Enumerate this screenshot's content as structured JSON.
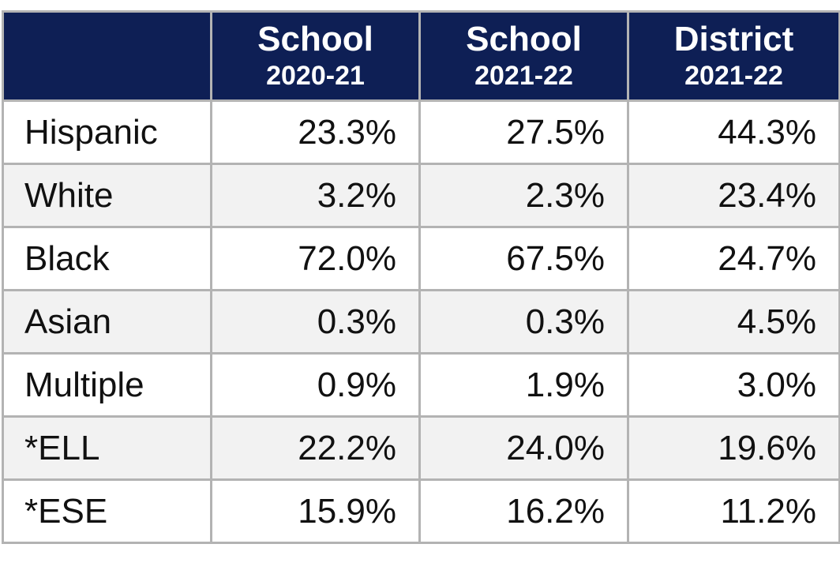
{
  "table": {
    "columns": [
      {
        "title": "School",
        "period": "2020-21"
      },
      {
        "title": "School",
        "period": "2021-22"
      },
      {
        "title": "District",
        "period": "2021-22"
      }
    ],
    "rows": [
      [
        "Hispanic",
        "23.3%",
        "27.5%",
        "44.3%"
      ],
      [
        "White",
        "3.2%",
        "2.3%",
        "23.4%"
      ],
      [
        "Black",
        "72.0%",
        "67.5%",
        "24.7%"
      ],
      [
        "Asian",
        "0.3%",
        "0.3%",
        "4.5%"
      ],
      [
        "Multiple",
        "0.9%",
        "1.9%",
        "3.0%"
      ],
      [
        "*ELL",
        "22.2%",
        "24.0%",
        "19.6%"
      ],
      [
        "*ESE",
        "15.9%",
        "16.2%",
        "11.2%"
      ]
    ]
  }
}
